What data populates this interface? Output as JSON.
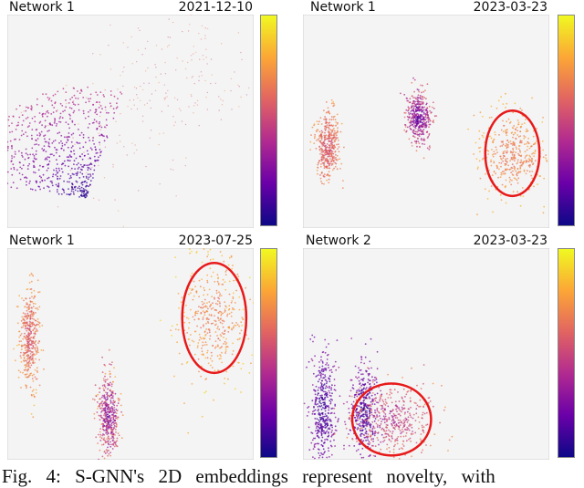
{
  "figure_caption": "Fig. 4: S-GNN's 2D embeddings represent novelty, with",
  "colormap": [
    "#0d0887",
    "#6a00a8",
    "#b12a90",
    "#e16462",
    "#fca636",
    "#f0f921"
  ],
  "highlight_color": "#e8191a",
  "chart_data": [
    {
      "type": "scatter",
      "network": "Network 1",
      "date": "2021-12-10",
      "grid": false,
      "legend": "colorbar-right",
      "clusters": [
        {
          "kind": "fan",
          "apex": [
            0.32,
            0.86
          ],
          "color_range": [
            0.05,
            0.45
          ]
        },
        {
          "kind": "diffuse",
          "center": [
            0.62,
            0.35
          ],
          "spread": [
            0.22,
            0.2
          ],
          "color_range": [
            0.45,
            0.75
          ]
        }
      ],
      "highlight": null
    },
    {
      "type": "scatter",
      "network": "Network 1",
      "date": "2023-03-23",
      "grid": false,
      "legend": "colorbar-right",
      "clusters": [
        {
          "kind": "blob",
          "center": [
            0.1,
            0.62
          ],
          "spread": [
            0.025,
            0.08
          ],
          "color_range": [
            0.45,
            0.8
          ]
        },
        {
          "kind": "blob",
          "center": [
            0.47,
            0.48
          ],
          "spread": [
            0.025,
            0.06
          ],
          "color_range": [
            0.05,
            0.7
          ]
        },
        {
          "kind": "blob",
          "center": [
            0.85,
            0.65
          ],
          "spread": [
            0.07,
            0.1
          ],
          "color_range": [
            0.55,
            0.9
          ]
        }
      ],
      "highlight": {
        "center": [
          0.85,
          0.65
        ],
        "radius": [
          0.11,
          0.2
        ]
      }
    },
    {
      "type": "scatter",
      "network": "Network 1",
      "date": "2023-07-25",
      "grid": false,
      "legend": "colorbar-right",
      "clusters": [
        {
          "kind": "blob",
          "center": [
            0.09,
            0.42
          ],
          "spread": [
            0.02,
            0.12
          ],
          "color_range": [
            0.45,
            0.85
          ]
        },
        {
          "kind": "blob",
          "center": [
            0.41,
            0.79
          ],
          "spread": [
            0.02,
            0.09
          ],
          "color_range": [
            0.05,
            0.85
          ]
        },
        {
          "kind": "blob",
          "center": [
            0.84,
            0.33
          ],
          "spread": [
            0.07,
            0.16
          ],
          "color_range": [
            0.55,
            0.95
          ]
        }
      ],
      "highlight": {
        "center": [
          0.84,
          0.33
        ],
        "radius": [
          0.13,
          0.26
        ]
      }
    },
    {
      "type": "scatter",
      "network": "Network 2",
      "date": "2023-03-23",
      "grid": false,
      "legend": "colorbar-right",
      "clusters": [
        {
          "kind": "blob",
          "center": [
            0.08,
            0.76
          ],
          "spread": [
            0.025,
            0.13
          ],
          "color_range": [
            0.02,
            0.35
          ]
        },
        {
          "kind": "blob",
          "center": [
            0.25,
            0.78
          ],
          "spread": [
            0.03,
            0.12
          ],
          "color_range": [
            0.02,
            0.4
          ]
        },
        {
          "kind": "blob",
          "center": [
            0.37,
            0.81
          ],
          "spread": [
            0.08,
            0.08
          ],
          "color_range": [
            0.3,
            0.75
          ]
        }
      ],
      "highlight": {
        "center": [
          0.36,
          0.81
        ],
        "radius": [
          0.16,
          0.17
        ]
      }
    }
  ]
}
